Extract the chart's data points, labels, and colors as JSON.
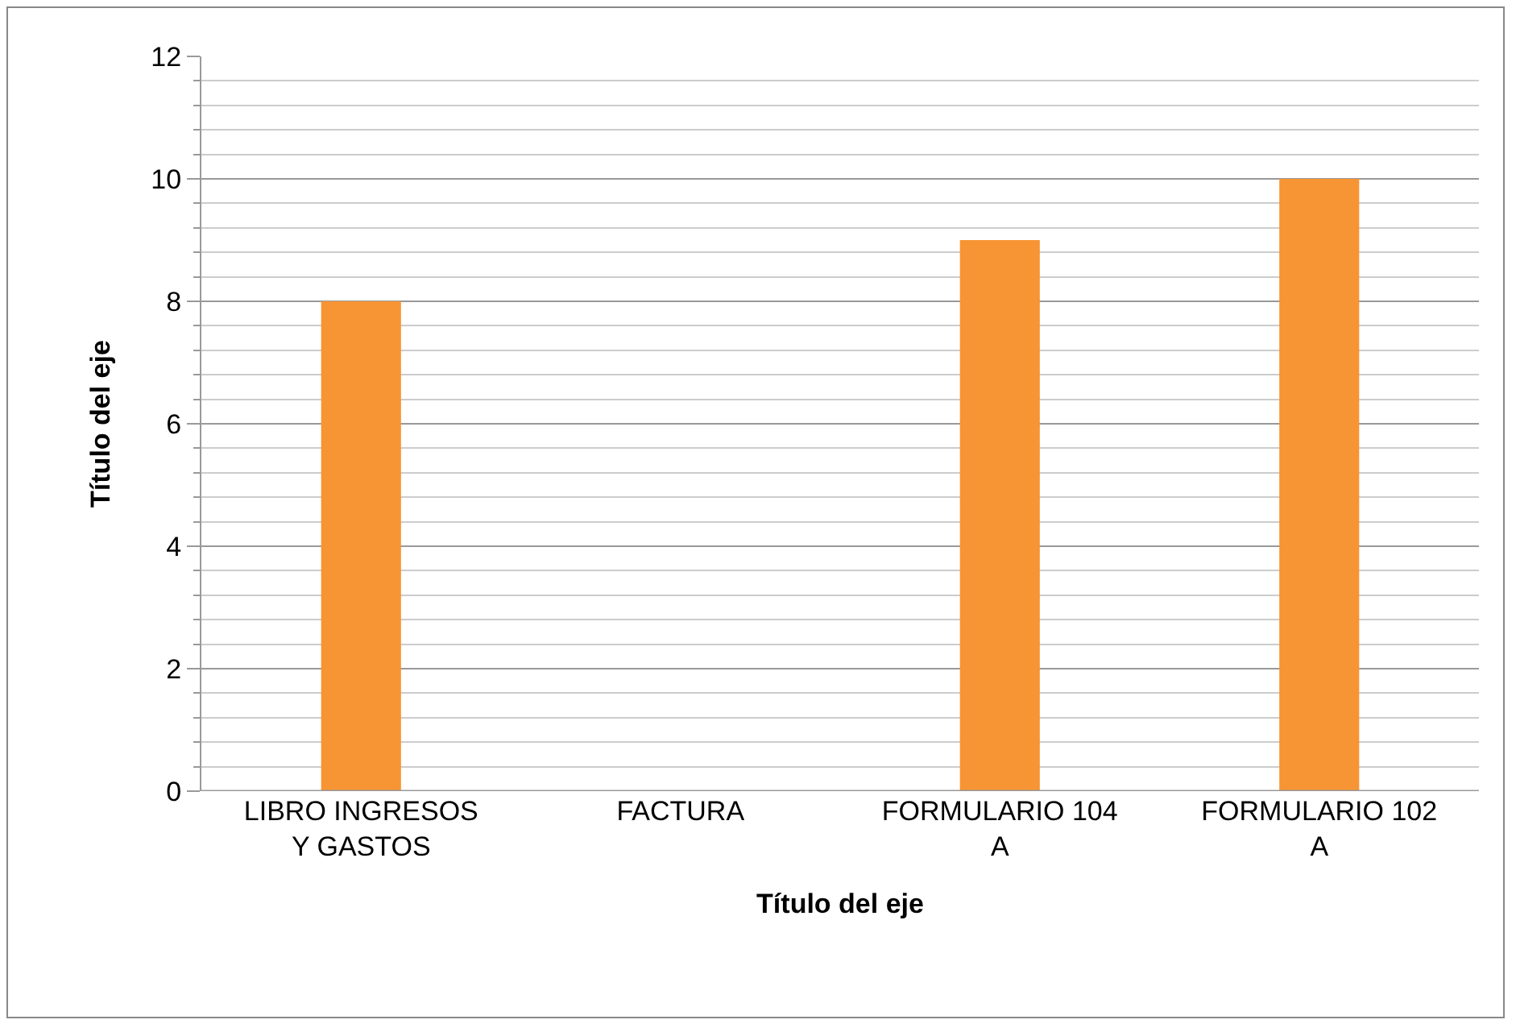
{
  "chart_data": {
    "type": "bar",
    "xlabel": "Título del eje",
    "ylabel": "Título del eje",
    "categories": [
      "LIBRO INGRESOS Y GASTOS",
      "FACTURA",
      "FORMULARIO 104 A",
      "FORMULARIO 102 A"
    ],
    "values": [
      8,
      0,
      9,
      10
    ],
    "color": "#f79433",
    "ylim": [
      0,
      12
    ],
    "yticks": [
      0,
      2,
      4,
      6,
      8,
      10,
      12
    ],
    "grid": "y"
  }
}
